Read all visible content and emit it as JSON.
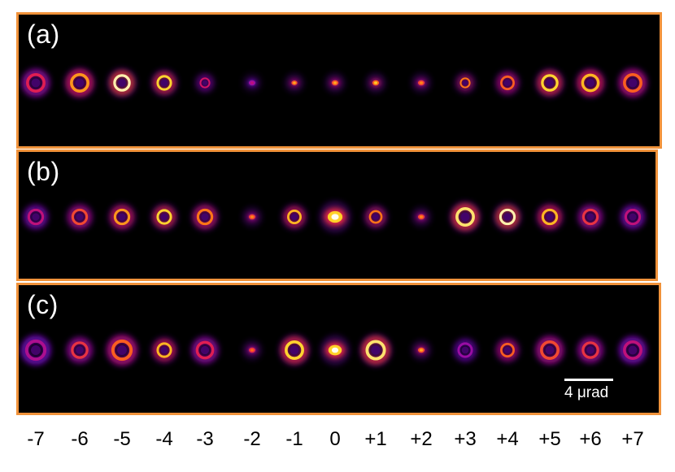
{
  "panels": [
    {
      "id": "a",
      "label": "(a)"
    },
    {
      "id": "b",
      "label": "(b)"
    },
    {
      "id": "c",
      "label": "(c)"
    }
  ],
  "scale_bar": {
    "label": "4 μrad"
  },
  "orders": [
    "-7",
    "-6",
    "-5",
    "-4",
    "-3",
    "-2",
    "-1",
    "0",
    "+1",
    "+2",
    "+3",
    "+4",
    "+5",
    "+6",
    "+7"
  ],
  "colors": {
    "frame": "#f0923a",
    "background": "#000000",
    "colormap": "fire"
  },
  "beam_profiles": {
    "a": [
      {
        "ring": true,
        "size": 1.0,
        "intensity": 0.55
      },
      {
        "ring": true,
        "size": 1.0,
        "intensity": 0.8
      },
      {
        "ring": true,
        "size": 0.9,
        "intensity": 1.0
      },
      {
        "ring": true,
        "size": 0.8,
        "intensity": 0.9
      },
      {
        "ring": true,
        "size": 0.55,
        "intensity": 0.5
      },
      {
        "ring": false,
        "size": 0.45,
        "intensity": 0.4
      },
      {
        "ring": false,
        "size": 0.4,
        "intensity": 0.75
      },
      {
        "ring": false,
        "size": 0.45,
        "intensity": 0.75
      },
      {
        "ring": false,
        "size": 0.45,
        "intensity": 0.8
      },
      {
        "ring": false,
        "size": 0.45,
        "intensity": 0.7
      },
      {
        "ring": true,
        "size": 0.55,
        "intensity": 0.75
      },
      {
        "ring": true,
        "size": 0.75,
        "intensity": 0.7
      },
      {
        "ring": true,
        "size": 0.9,
        "intensity": 0.9
      },
      {
        "ring": true,
        "size": 0.95,
        "intensity": 0.85
      },
      {
        "ring": true,
        "size": 1.0,
        "intensity": 0.7
      }
    ],
    "b": [
      {
        "ring": true,
        "size": 0.85,
        "intensity": 0.45
      },
      {
        "ring": true,
        "size": 0.85,
        "intensity": 0.65
      },
      {
        "ring": true,
        "size": 0.85,
        "intensity": 0.8
      },
      {
        "ring": true,
        "size": 0.8,
        "intensity": 0.9
      },
      {
        "ring": true,
        "size": 0.85,
        "intensity": 0.75
      },
      {
        "ring": false,
        "size": 0.45,
        "intensity": 0.7
      },
      {
        "ring": true,
        "size": 0.75,
        "intensity": 0.85
      },
      {
        "ring": false,
        "size": 1.0,
        "intensity": 1.0
      },
      {
        "ring": true,
        "size": 0.7,
        "intensity": 0.75
      },
      {
        "ring": false,
        "size": 0.45,
        "intensity": 0.7
      },
      {
        "ring": true,
        "size": 1.0,
        "intensity": 0.95
      },
      {
        "ring": true,
        "size": 0.85,
        "intensity": 1.0
      },
      {
        "ring": true,
        "size": 0.85,
        "intensity": 0.85
      },
      {
        "ring": true,
        "size": 0.85,
        "intensity": 0.6
      },
      {
        "ring": true,
        "size": 0.85,
        "intensity": 0.45
      }
    ],
    "c": [
      {
        "ring": true,
        "size": 1.1,
        "intensity": 0.4
      },
      {
        "ring": true,
        "size": 0.9,
        "intensity": 0.6
      },
      {
        "ring": true,
        "size": 1.1,
        "intensity": 0.7
      },
      {
        "ring": true,
        "size": 0.8,
        "intensity": 0.85
      },
      {
        "ring": true,
        "size": 0.95,
        "intensity": 0.55
      },
      {
        "ring": false,
        "size": 0.45,
        "intensity": 0.65
      },
      {
        "ring": true,
        "size": 1.0,
        "intensity": 0.9
      },
      {
        "ring": false,
        "size": 0.9,
        "intensity": 1.0
      },
      {
        "ring": true,
        "size": 1.05,
        "intensity": 0.95
      },
      {
        "ring": false,
        "size": 0.45,
        "intensity": 0.75
      },
      {
        "ring": true,
        "size": 0.8,
        "intensity": 0.35
      },
      {
        "ring": true,
        "size": 0.75,
        "intensity": 0.7
      },
      {
        "ring": true,
        "size": 1.0,
        "intensity": 0.65
      },
      {
        "ring": true,
        "size": 0.9,
        "intensity": 0.6
      },
      {
        "ring": true,
        "size": 1.0,
        "intensity": 0.45
      }
    ]
  }
}
